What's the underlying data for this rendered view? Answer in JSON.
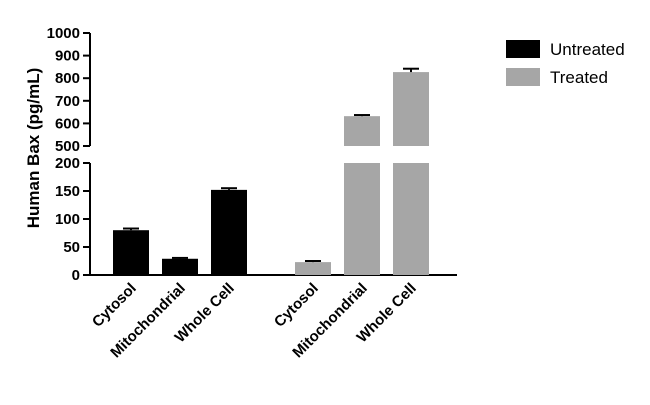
{
  "chart_data": {
    "type": "bar",
    "title": "",
    "xlabel": "",
    "ylabel": "Human Bax (pg/mL)",
    "categories": [
      "Cytosol",
      "Mitochondrial",
      "Whole Cell"
    ],
    "y_axis_broken": true,
    "y_segments": [
      {
        "range": [
          0,
          200
        ],
        "ticks": [
          0,
          50,
          100,
          150,
          200
        ]
      },
      {
        "range": [
          500,
          1000
        ],
        "ticks": [
          500,
          600,
          700,
          800,
          900,
          1000
        ]
      }
    ],
    "series": [
      {
        "name": "Untreated",
        "color": "#000000",
        "values": [
          80,
          29,
          152
        ],
        "errors": [
          3,
          1.5,
          3
        ]
      },
      {
        "name": "Treated",
        "color": "#a6a6a6",
        "values": [
          23,
          632,
          827
        ],
        "errors": [
          2,
          5,
          15
        ]
      }
    ],
    "legend_position": "top-right",
    "grid": false
  }
}
